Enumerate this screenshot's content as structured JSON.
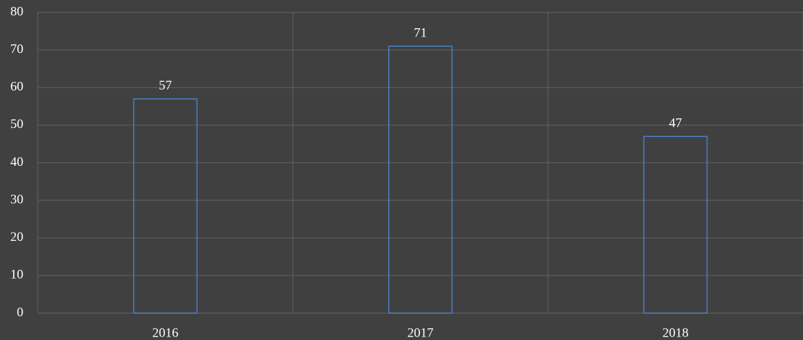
{
  "chart_data": {
    "type": "bar",
    "categories": [
      "2016",
      "2017",
      "2018"
    ],
    "values": [
      57,
      71,
      47
    ],
    "color": "#4a7ec4",
    "ylim": [
      0,
      80
    ],
    "yticks": [
      0,
      10,
      20,
      30,
      40,
      50,
      60,
      70,
      80
    ],
    "grid": true
  }
}
